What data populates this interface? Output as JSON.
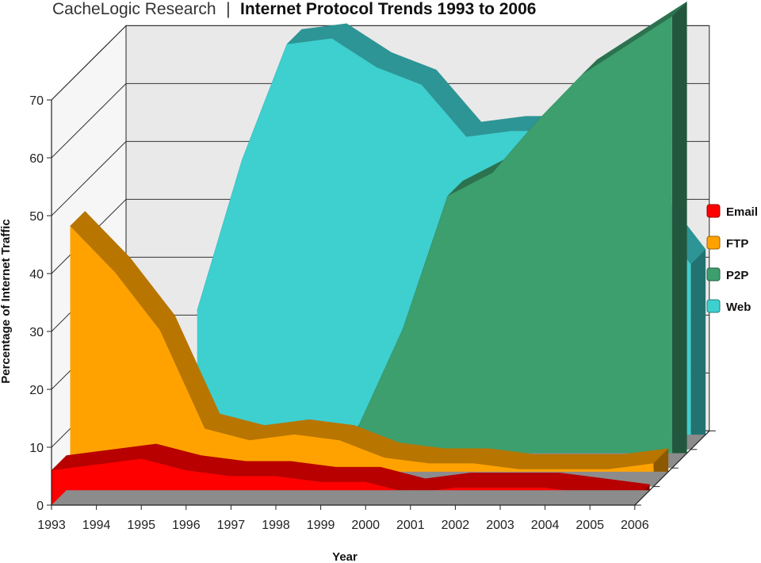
{
  "header": {
    "source": "CacheLogic Research",
    "separator": "|",
    "title": "Internet Protocol Trends 1993 to 2006"
  },
  "chart_data": {
    "type": "area",
    "title": "Internet Protocol Trends 1993 to 2006",
    "xlabel": "Year",
    "ylabel": "Percentage of Internet Traffic",
    "x": [
      "1993",
      "1994",
      "1995",
      "1996",
      "1997",
      "1998",
      "1999",
      "2000",
      "2001",
      "2002",
      "2003",
      "2004",
      "2005",
      "2006"
    ],
    "ylim": [
      0,
      70
    ],
    "yticks": [
      0,
      10,
      20,
      30,
      40,
      50,
      60,
      70
    ],
    "grid": true,
    "legend_position": "right",
    "series": [
      {
        "name": "Web",
        "color": "#3ecfcf",
        "values": [
          null,
          null,
          24,
          50,
          70,
          71,
          66,
          63,
          54,
          55,
          55,
          55,
          42,
          32
        ]
      },
      {
        "name": "P2P",
        "color": "#3d9e6e",
        "values": [
          null,
          null,
          null,
          null,
          null,
          0,
          7,
          24,
          47,
          51,
          60,
          68,
          73,
          78
        ]
      },
      {
        "name": "FTP",
        "color": "#ffa200",
        "values": [
          45,
          37,
          27,
          10,
          8,
          9,
          8,
          5,
          4,
          4,
          3,
          3,
          3,
          4
        ]
      },
      {
        "name": "Email",
        "color": "#ff0000",
        "values": [
          6,
          7,
          8,
          6,
          5,
          5,
          4,
          4,
          2,
          3,
          3,
          3,
          2,
          1
        ]
      }
    ]
  }
}
